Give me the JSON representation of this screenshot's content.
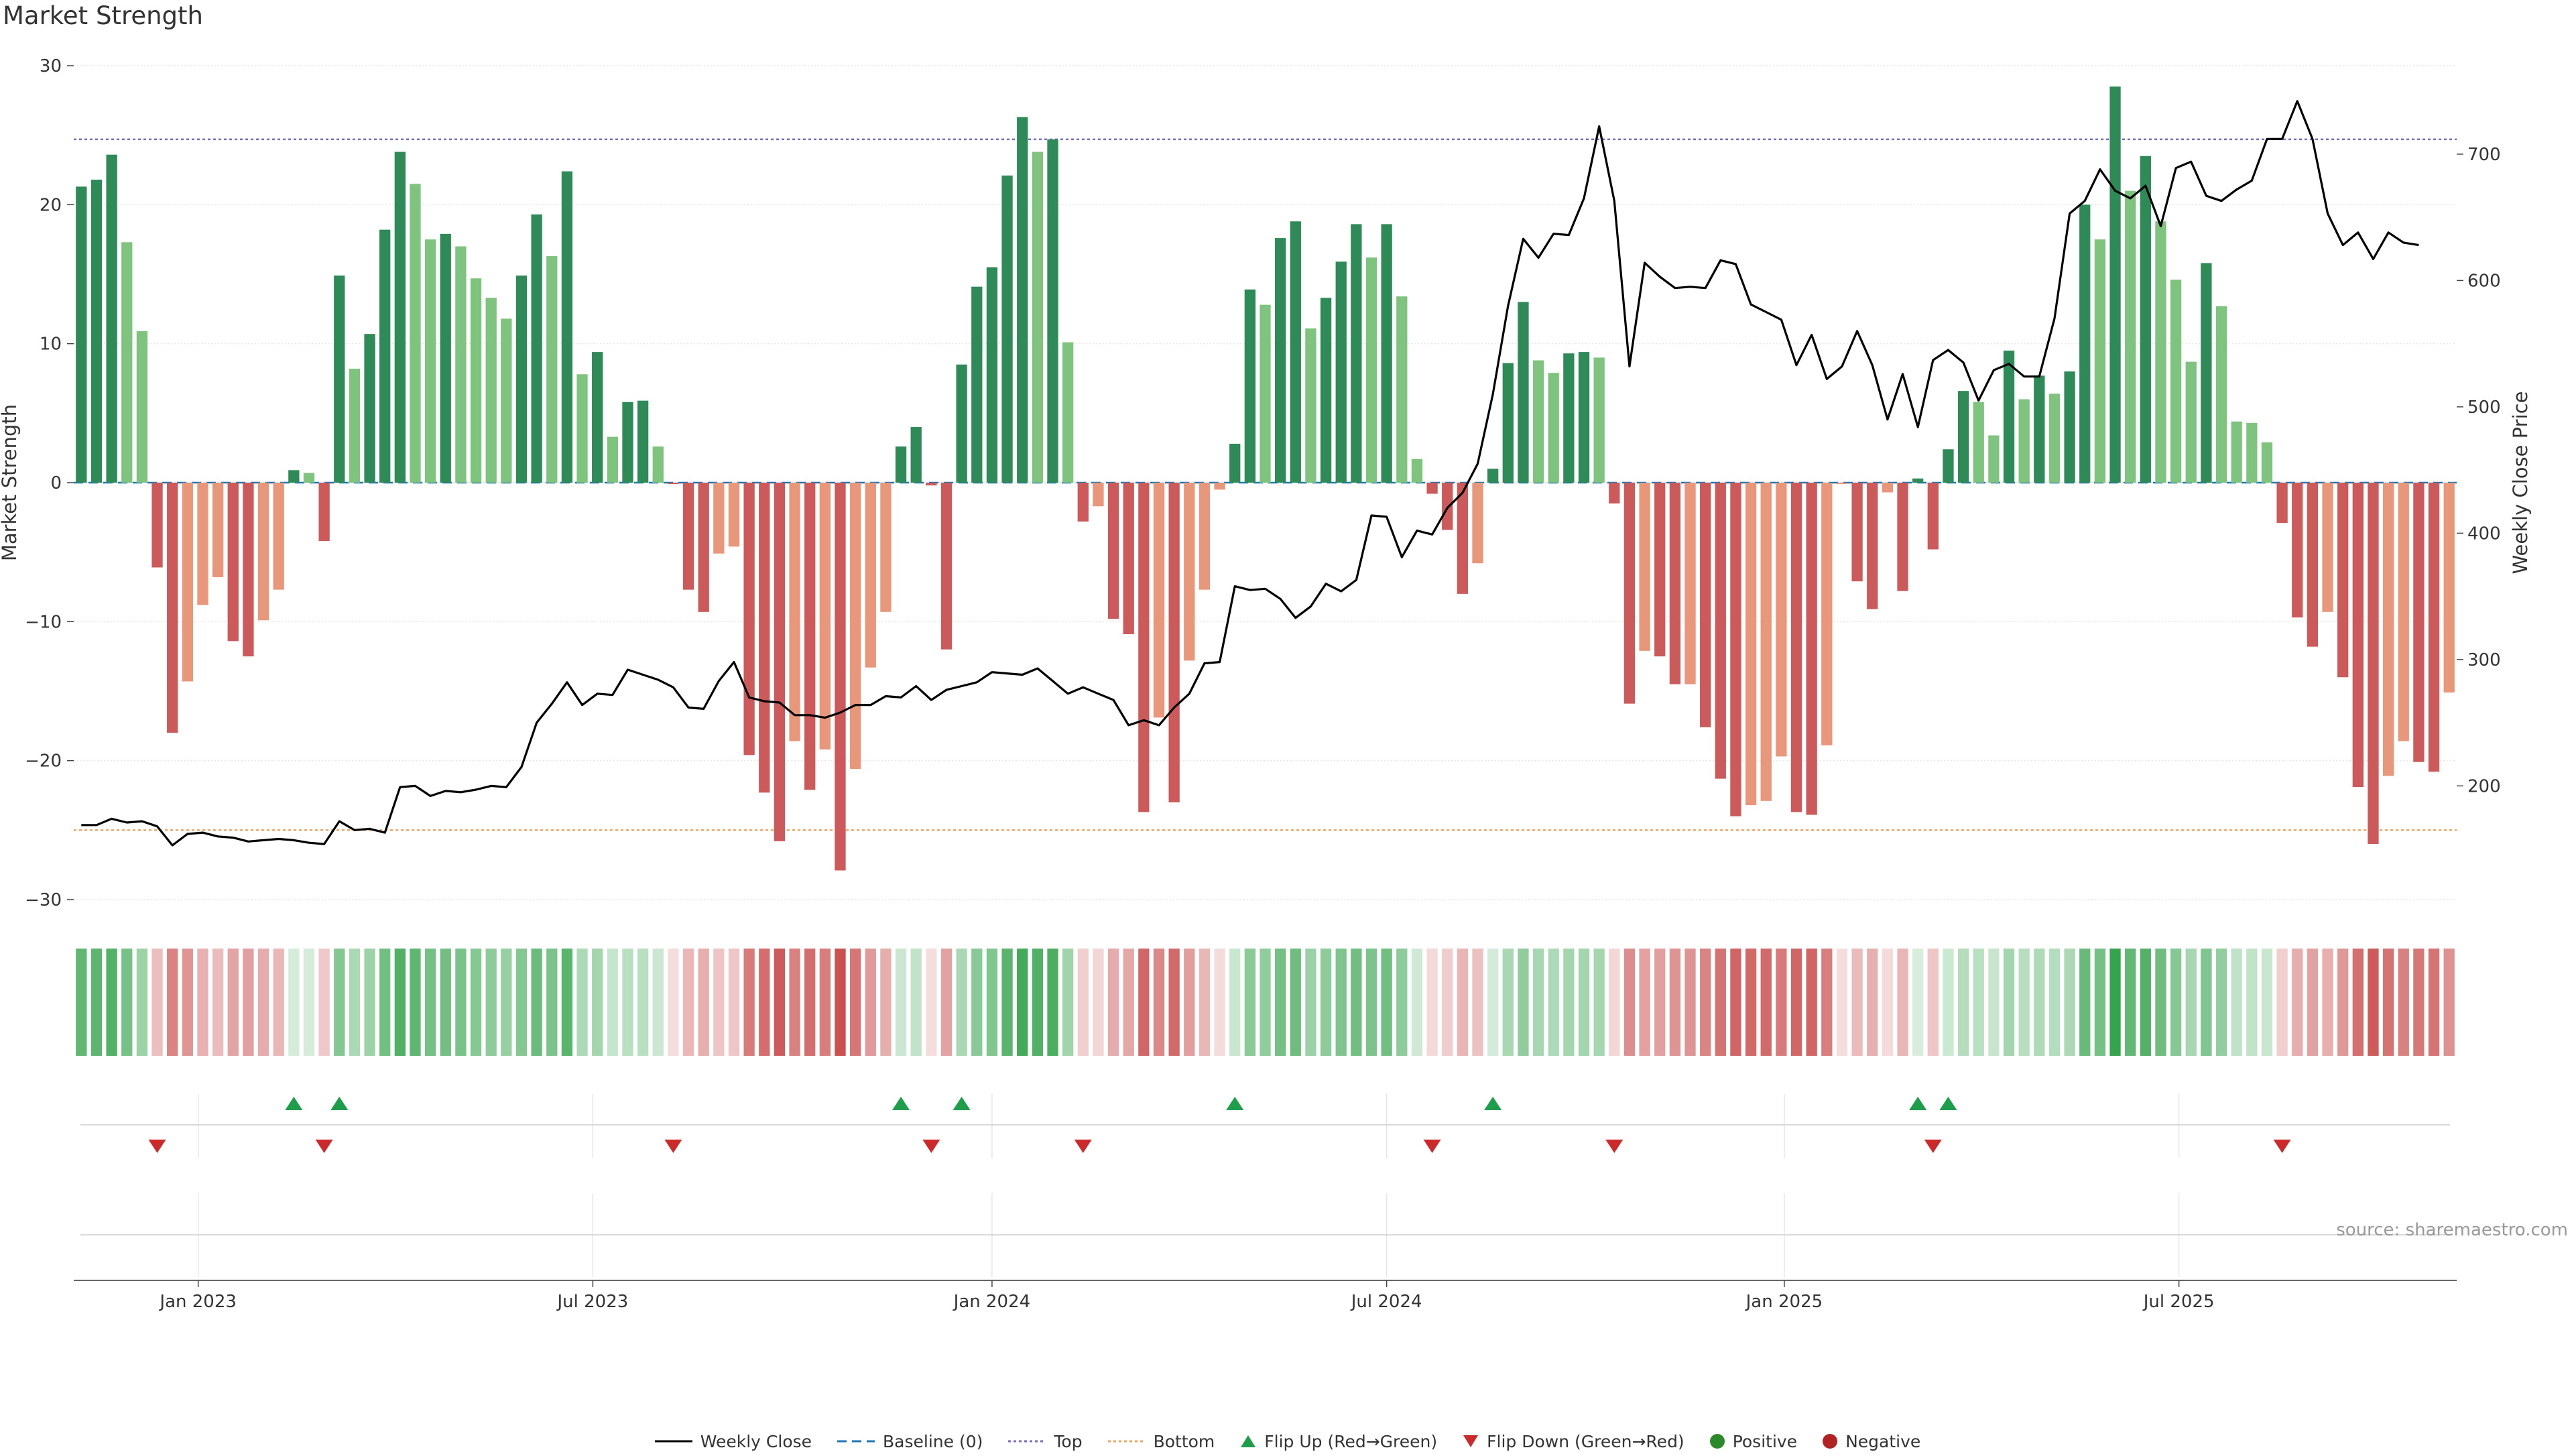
{
  "chart_data": {
    "type": "bar",
    "title": "Market Strength",
    "ylabel": "Market Strength",
    "y2label": "Weekly Close Price",
    "ylim": [
      -30,
      30
    ],
    "y2lim": [
      110,
      770
    ],
    "yticks": [
      "30",
      "20",
      "10",
      "0",
      "−10",
      "−20",
      "−30"
    ],
    "y2ticks": [
      "700",
      "600",
      "500",
      "400",
      "300",
      "200"
    ],
    "xticks": [
      "Jan 2023",
      "Jul 2023",
      "Jan 2024",
      "Jul 2024",
      "Jan 2025",
      "Jul 2025"
    ],
    "xtick_week_index": [
      7.7,
      33.7,
      60.0,
      86.0,
      112.2,
      138.2
    ],
    "top_level": 24.7,
    "bottom_level": -25,
    "colors": {
      "pos_strong": "#2e8b57",
      "pos_light": "#7fc47e",
      "neg_strong": "#cd5a5a",
      "neg_light": "#e9977a",
      "price": "#000000",
      "top": "#7b68c9",
      "bottom": "#f2a35e",
      "baseline": "#1f77b4",
      "flip_up": "#1e9e4a",
      "flip_down": "#cc2a2a",
      "positive_marker": "#2a8a2a",
      "negative_marker": "#b22222"
    },
    "strength": [
      21.3,
      21.8,
      23.6,
      17.3,
      10.9,
      -6.1,
      -18,
      -14.3,
      -8.8,
      -6.8,
      -11.4,
      -12.5,
      -9.9,
      -7.7,
      0.9,
      0.7,
      -4.2,
      14.9,
      8.2,
      10.7,
      18.2,
      23.8,
      21.5,
      17.5,
      17.9,
      17.0,
      14.7,
      13.3,
      11.8,
      14.9,
      19.3,
      16.3,
      22.4,
      7.8,
      9.4,
      3.3,
      5.8,
      5.9,
      2.6,
      -0.1,
      -7.7,
      -9.3,
      -5.1,
      -4.6,
      -19.6,
      -22.3,
      -25.8,
      -18.6,
      -22.1,
      -19.2,
      -27.9,
      -20.6,
      -13.3,
      -9.3,
      2.6,
      4.0,
      -0.2,
      -12,
      8.5,
      14.1,
      15.5,
      22.1,
      26.3,
      23.8,
      24.7,
      10.1,
      -2.8,
      -1.7,
      -9.8,
      -10.9,
      -23.7,
      -16.9,
      -23,
      -12.8,
      -7.7,
      -0.5,
      2.8,
      13.9,
      12.8,
      17.6,
      18.8,
      11.1,
      13.3,
      15.9,
      18.6,
      16.2,
      18.6,
      13.4,
      1.7,
      -0.8,
      -3.4,
      -8,
      -5.8,
      1.0,
      8.6,
      13.0,
      8.8,
      7.9,
      9.3,
      9.4,
      9.0,
      -1.5,
      -15.9,
      -12.1,
      -12.5,
      -14.5,
      -14.5,
      -17.6,
      -21.3,
      -24,
      -23.2,
      -22.9,
      -19.7,
      -23.7,
      -23.9,
      -18.9,
      -0.1,
      -7.1,
      -9.1,
      -0.7,
      -7.8,
      0.3,
      -4.8,
      2.4,
      6.6,
      5.8,
      3.4,
      9.5,
      6.0,
      7.7,
      6.4,
      8.0,
      20.0,
      17.5,
      28.5,
      21.0,
      23.5,
      18.8,
      14.6,
      8.7,
      15.8,
      12.7,
      4.4,
      4.3,
      2.9,
      -2.9,
      -9.7,
      -11.8,
      -9.3,
      -14,
      -21.9,
      -26,
      -21.1,
      -18.6,
      -20.1,
      -20.8,
      -15.1
    ],
    "close": [
      169,
      169,
      174,
      171,
      172,
      168,
      153,
      162,
      163,
      160,
      159,
      156,
      157,
      158,
      157,
      155,
      154,
      172,
      165,
      166,
      163,
      199,
      200,
      192,
      196,
      195,
      197,
      200,
      199,
      215,
      250,
      265,
      282,
      264,
      273,
      272,
      292,
      288,
      284,
      278,
      262,
      261,
      283,
      298,
      270,
      267,
      266,
      256,
      256,
      254,
      258,
      264,
      264,
      271,
      270,
      279,
      268,
      276,
      279,
      282,
      290,
      289,
      288,
      293,
      283,
      273,
      278,
      273,
      268,
      248,
      252,
      248,
      262,
      273,
      297,
      298,
      358,
      355,
      356,
      348,
      333,
      342,
      360,
      354,
      363,
      414,
      413,
      381,
      402,
      399,
      420,
      432,
      455,
      510,
      580,
      633,
      618,
      637,
      636,
      665,
      722,
      663,
      532,
      614,
      603,
      594,
      595,
      594,
      616,
      613,
      581,
      575,
      569,
      533,
      557,
      522,
      532,
      560,
      533,
      490,
      526,
      484,
      537,
      545,
      535,
      505,
      529,
      534,
      524,
      524,
      570,
      653,
      663,
      688,
      671,
      665,
      675,
      643,
      689,
      694,
      667,
      663,
      672,
      679,
      712,
      712,
      742,
      712,
      653,
      628,
      638,
      617,
      638,
      630,
      628
    ],
    "series": [
      {
        "name": "Weekly Close"
      },
      {
        "name": "Baseline (0)"
      },
      {
        "name": "Top"
      },
      {
        "name": "Bottom"
      },
      {
        "name": "Flip Up (Red→Green)"
      },
      {
        "name": "Flip Down (Green→Red)"
      },
      {
        "name": "Positive"
      },
      {
        "name": "Negative"
      }
    ]
  },
  "source": "source: sharemaestro.com"
}
